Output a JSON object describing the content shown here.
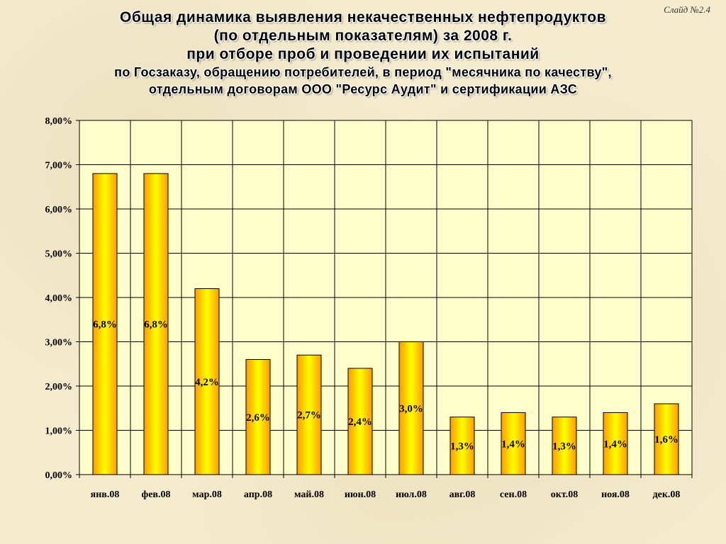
{
  "slide_number": "Слайд №2.4",
  "title": {
    "line1": "Общая динамика выявления некачественных нефтепродуктов",
    "line2": "(по отдельным показателям) за 2008 г.",
    "line3": "при отборе проб и проведении их испытаний",
    "line4": "по Госзаказу, обращению потребителей, в период \"месячника по качеству\",",
    "line5": "отдельным договорам ООО \"Ресурс Аудит\" и сертификации АЗС"
  },
  "chart_data": {
    "type": "bar",
    "categories": [
      "янв.08",
      "фев.08",
      "мар.08",
      "апр.08",
      "май.08",
      "июн.08",
      "июл.08",
      "авг.08",
      "сен.08",
      "окт.08",
      "ноя.08",
      "дек.08"
    ],
    "values": [
      6.8,
      6.8,
      4.2,
      2.6,
      2.7,
      2.4,
      3.0,
      1.3,
      1.4,
      1.3,
      1.4,
      1.6
    ],
    "data_labels": [
      "6,8%",
      "6,8%",
      "4,2%",
      "2,6%",
      "2,7%",
      "2,4%",
      "3,0%",
      "1,3%",
      "1,4%",
      "1,3%",
      "1,4%",
      "1,6%"
    ],
    "y_tick_values": [
      0,
      1,
      2,
      3,
      4,
      5,
      6,
      7,
      8
    ],
    "y_ticks": [
      "0,00%",
      "1,00%",
      "2,00%",
      "3,00%",
      "4,00%",
      "5,00%",
      "6,00%",
      "7,00%",
      "8,00%"
    ],
    "ylim": [
      0,
      8
    ],
    "grid": true,
    "legend": "none",
    "colors": {
      "bar_edge": "#ff9a00",
      "bar_center": "#ffff00",
      "bar_outline": "#000000",
      "plot_bg": "#ffffcc",
      "grid": "#000000"
    }
  }
}
